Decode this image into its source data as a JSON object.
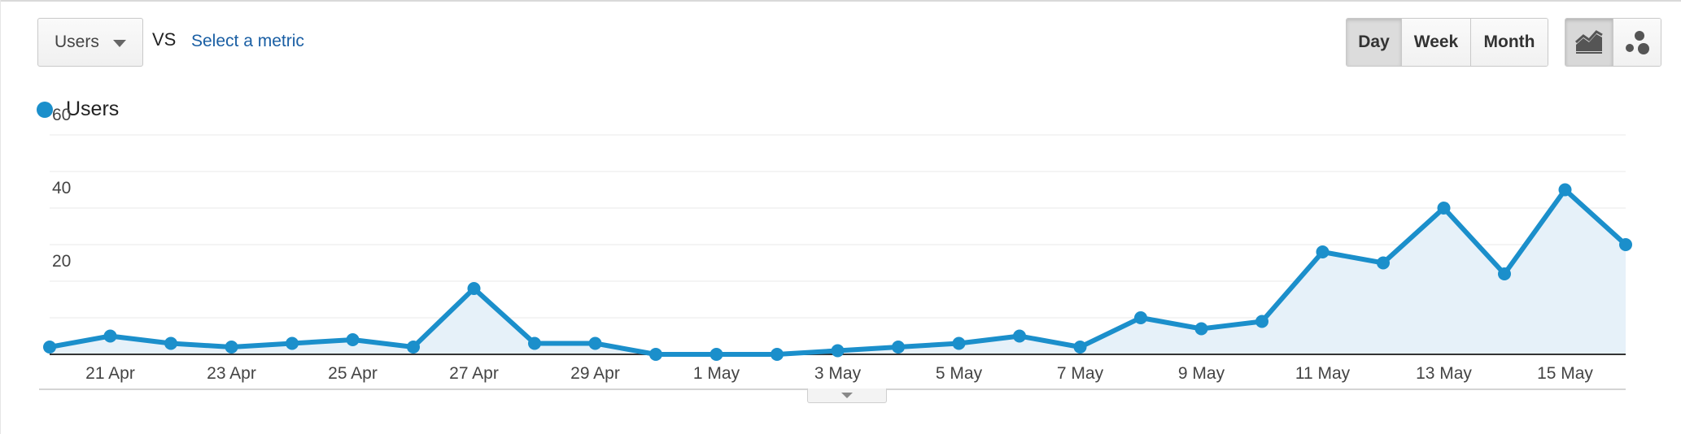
{
  "controls": {
    "metric_select": "Users",
    "vs_label": "VS",
    "select_metric_link": "Select a metric",
    "periods": [
      "Day",
      "Week",
      "Month"
    ],
    "active_period": "Day",
    "chart_types": [
      "line-chart-icon",
      "motion-chart-icon"
    ],
    "active_chart_type": "line-chart-icon"
  },
  "colors": {
    "series": "#1b8fcb",
    "area": "#e6f1f9",
    "grid": "#e8e8e8",
    "link": "#1a5fa4"
  },
  "chart_data": {
    "type": "line",
    "x": [
      "20 Apr",
      "21 Apr",
      "22 Apr",
      "23 Apr",
      "24 Apr",
      "25 Apr",
      "26 Apr",
      "27 Apr",
      "28 Apr",
      "29 Apr",
      "30 Apr",
      "1 May",
      "2 May",
      "3 May",
      "4 May",
      "5 May",
      "6 May",
      "7 May",
      "8 May",
      "9 May",
      "10 May",
      "11 May",
      "12 May",
      "13 May",
      "14 May",
      "15 May",
      "16 May"
    ],
    "xticks": [
      "21 Apr",
      "23 Apr",
      "25 Apr",
      "27 Apr",
      "29 Apr",
      "1 May",
      "3 May",
      "5 May",
      "7 May",
      "9 May",
      "11 May",
      "13 May",
      "15 May"
    ],
    "yticks": [
      20,
      40,
      60
    ],
    "ylim": [
      0,
      60
    ],
    "legend": "top-left",
    "grid": true,
    "series": [
      {
        "name": "Users",
        "values": [
          2,
          5,
          3,
          2,
          3,
          4,
          2,
          18,
          3,
          3,
          0,
          0,
          0,
          1,
          2,
          3,
          5,
          2,
          10,
          7,
          9,
          28,
          25,
          40,
          22,
          45,
          30
        ]
      }
    ]
  }
}
